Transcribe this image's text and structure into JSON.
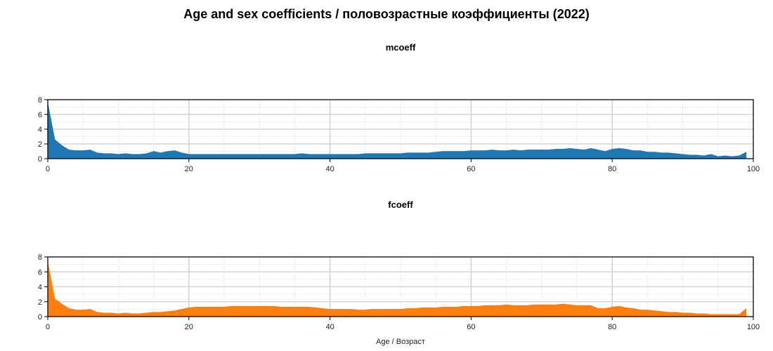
{
  "chart_data": {
    "type": "area",
    "title": "Age and sex coefficients / половозрастные коэффициенты (2022)",
    "xlabel": "Age / Возраст",
    "xlim": [
      0,
      100
    ],
    "x_ticks": [
      0,
      20,
      40,
      60,
      80,
      100
    ],
    "grid": true,
    "panels": [
      {
        "subtitle": "mcoeff",
        "ylabel": "",
        "ylim": [
          0,
          8
        ],
        "y_ticks": [
          0,
          2,
          4,
          6,
          8
        ],
        "color": "#1f77b4",
        "show_xlabel": false,
        "series": [
          {
            "x": [
              0,
              1,
              2,
              3,
              4,
              5,
              6,
              7,
              8,
              9,
              10,
              11,
              12,
              13,
              14,
              15,
              16,
              17,
              18,
              19,
              20,
              21,
              22,
              23,
              24,
              25,
              26,
              27,
              28,
              29,
              30,
              31,
              32,
              33,
              34,
              35,
              36,
              37,
              38,
              39,
              40,
              41,
              42,
              43,
              44,
              45,
              46,
              47,
              48,
              49,
              50,
              51,
              52,
              53,
              54,
              55,
              56,
              57,
              58,
              59,
              60,
              61,
              62,
              63,
              64,
              65,
              66,
              67,
              68,
              69,
              70,
              71,
              72,
              73,
              74,
              75,
              76,
              77,
              78,
              79,
              80,
              81,
              82,
              83,
              84,
              85,
              86,
              87,
              88,
              89,
              90,
              91,
              92,
              93,
              94,
              95,
              96,
              97,
              98,
              99
            ],
            "values": [
              7.6,
              2.6,
              1.8,
              1.2,
              1.1,
              1.1,
              1.2,
              0.8,
              0.7,
              0.7,
              0.6,
              0.7,
              0.6,
              0.6,
              0.7,
              1.0,
              0.8,
              1.0,
              1.1,
              0.8,
              0.6,
              0.6,
              0.6,
              0.6,
              0.6,
              0.6,
              0.6,
              0.6,
              0.6,
              0.6,
              0.6,
              0.6,
              0.6,
              0.6,
              0.6,
              0.6,
              0.7,
              0.6,
              0.6,
              0.6,
              0.6,
              0.6,
              0.6,
              0.6,
              0.6,
              0.7,
              0.7,
              0.7,
              0.7,
              0.7,
              0.7,
              0.8,
              0.8,
              0.8,
              0.8,
              0.9,
              1.0,
              1.0,
              1.0,
              1.0,
              1.1,
              1.1,
              1.1,
              1.2,
              1.1,
              1.1,
              1.2,
              1.1,
              1.2,
              1.2,
              1.2,
              1.2,
              1.3,
              1.3,
              1.4,
              1.3,
              1.2,
              1.4,
              1.2,
              1.0,
              1.3,
              1.4,
              1.3,
              1.1,
              1.1,
              0.9,
              0.9,
              0.8,
              0.8,
              0.7,
              0.6,
              0.5,
              0.5,
              0.4,
              0.6,
              0.3,
              0.4,
              0.3,
              0.4,
              0.9
            ]
          }
        ]
      },
      {
        "subtitle": "fcoeff",
        "ylabel": "",
        "ylim": [
          0,
          8
        ],
        "y_ticks": [
          0,
          2,
          4,
          6,
          8
        ],
        "color": "#ff7f0e",
        "show_xlabel": true,
        "series": [
          {
            "x": [
              0,
              1,
              2,
              3,
              4,
              5,
              6,
              7,
              8,
              9,
              10,
              11,
              12,
              13,
              14,
              15,
              16,
              17,
              18,
              19,
              20,
              21,
              22,
              23,
              24,
              25,
              26,
              27,
              28,
              29,
              30,
              31,
              32,
              33,
              34,
              35,
              36,
              37,
              38,
              39,
              40,
              41,
              42,
              43,
              44,
              45,
              46,
              47,
              48,
              49,
              50,
              51,
              52,
              53,
              54,
              55,
              56,
              57,
              58,
              59,
              60,
              61,
              62,
              63,
              64,
              65,
              66,
              67,
              68,
              69,
              70,
              71,
              72,
              73,
              74,
              75,
              76,
              77,
              78,
              79,
              80,
              81,
              82,
              83,
              84,
              85,
              86,
              87,
              88,
              89,
              90,
              91,
              92,
              93,
              94,
              95,
              96,
              97,
              98,
              99
            ],
            "values": [
              7.3,
              2.4,
              1.7,
              1.1,
              0.9,
              0.9,
              1.0,
              0.6,
              0.5,
              0.5,
              0.4,
              0.5,
              0.4,
              0.4,
              0.5,
              0.6,
              0.6,
              0.7,
              0.8,
              1.0,
              1.2,
              1.3,
              1.3,
              1.3,
              1.3,
              1.3,
              1.4,
              1.4,
              1.4,
              1.4,
              1.4,
              1.4,
              1.4,
              1.3,
              1.3,
              1.3,
              1.3,
              1.3,
              1.2,
              1.1,
              1.0,
              1.0,
              1.0,
              1.0,
              0.9,
              0.9,
              1.0,
              1.0,
              1.0,
              1.0,
              1.0,
              1.1,
              1.1,
              1.2,
              1.2,
              1.2,
              1.3,
              1.3,
              1.3,
              1.4,
              1.4,
              1.4,
              1.5,
              1.5,
              1.5,
              1.6,
              1.5,
              1.5,
              1.5,
              1.6,
              1.6,
              1.6,
              1.6,
              1.7,
              1.6,
              1.5,
              1.5,
              1.5,
              1.1,
              1.1,
              1.3,
              1.4,
              1.2,
              1.1,
              0.9,
              0.9,
              0.8,
              0.7,
              0.6,
              0.6,
              0.5,
              0.5,
              0.4,
              0.4,
              0.3,
              0.3,
              0.3,
              0.3,
              0.3,
              1.1
            ]
          }
        ]
      }
    ]
  }
}
